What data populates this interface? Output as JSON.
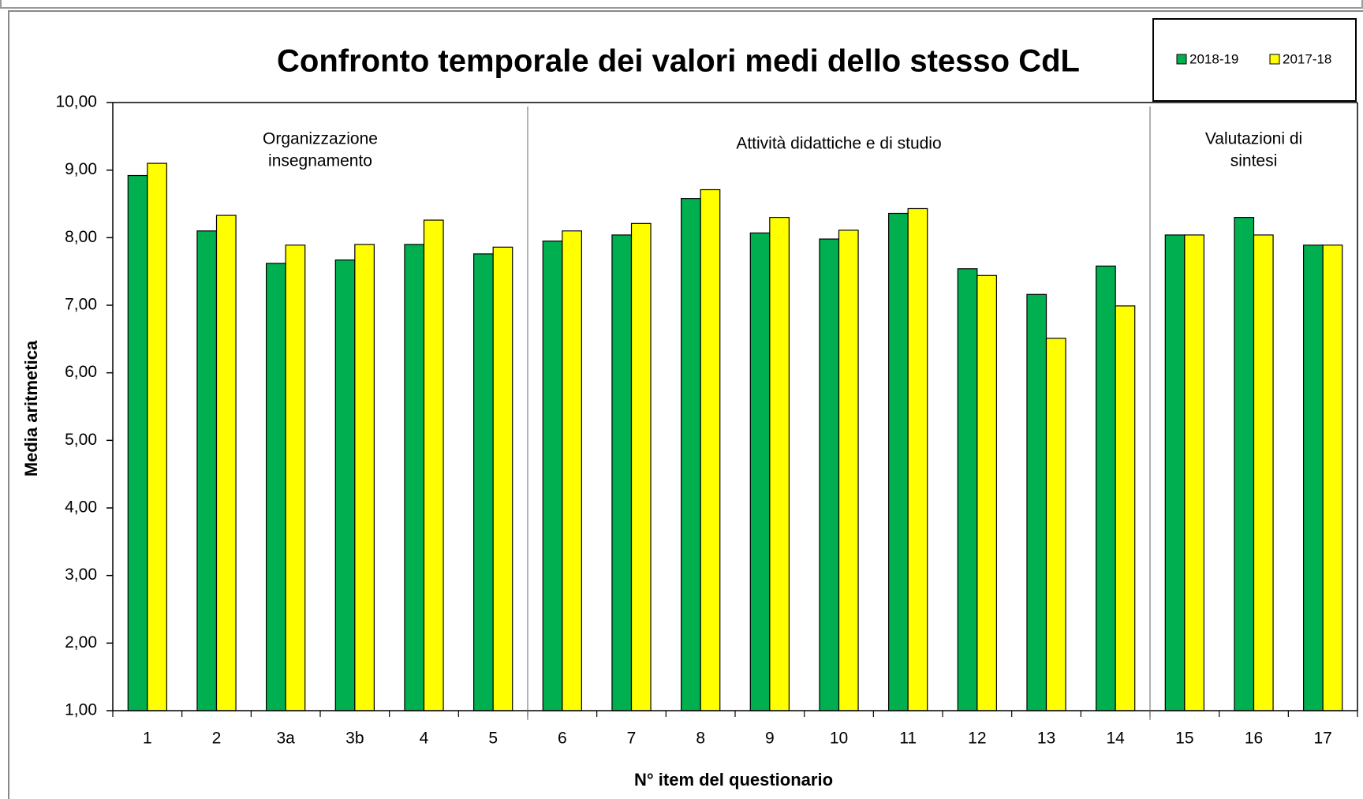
{
  "chart_data": {
    "type": "bar",
    "title": "Confronto temporale dei valori medi dello stesso CdL",
    "xlabel": "N° item del questionario",
    "ylabel": "Media aritmetica",
    "categories": [
      "1",
      "2",
      "3a",
      "3b",
      "4",
      "5",
      "6",
      "7",
      "8",
      "9",
      "10",
      "11",
      "12",
      "13",
      "14",
      "15",
      "16",
      "17"
    ],
    "series": [
      {
        "name": "2018-19",
        "color": "#00b050",
        "values": [
          8.92,
          8.1,
          7.62,
          7.67,
          7.9,
          7.76,
          7.95,
          8.04,
          8.58,
          8.07,
          7.98,
          8.36,
          7.54,
          7.16,
          7.58,
          8.04,
          8.3,
          7.89
        ]
      },
      {
        "name": "2017-18",
        "color": "#ffff00",
        "values": [
          9.1,
          8.33,
          7.89,
          7.9,
          8.26,
          7.86,
          8.1,
          8.21,
          8.71,
          8.3,
          8.11,
          8.43,
          7.44,
          6.51,
          6.99,
          8.04,
          8.04,
          7.89
        ]
      }
    ],
    "ylim": [
      1,
      10
    ],
    "yticks": [
      {
        "value": 1,
        "label": "1,00"
      },
      {
        "value": 2,
        "label": "2,00"
      },
      {
        "value": 3,
        "label": "3,00"
      },
      {
        "value": 4,
        "label": "4,00"
      },
      {
        "value": 5,
        "label": "5,00"
      },
      {
        "value": 6,
        "label": "6,00"
      },
      {
        "value": 7,
        "label": "7,00"
      },
      {
        "value": 8,
        "label": "8,00"
      },
      {
        "value": 9,
        "label": "9,00"
      },
      {
        "value": 10,
        "label": "10,00"
      }
    ],
    "annotations": [
      {
        "lines": [
          "Organizzazione",
          "insegnamento"
        ]
      },
      {
        "lines": [
          "Attività didattiche e di studio"
        ]
      },
      {
        "lines": [
          "Valutazioni di",
          "sintesi"
        ]
      }
    ],
    "legend": "upper right",
    "grid": false
  }
}
